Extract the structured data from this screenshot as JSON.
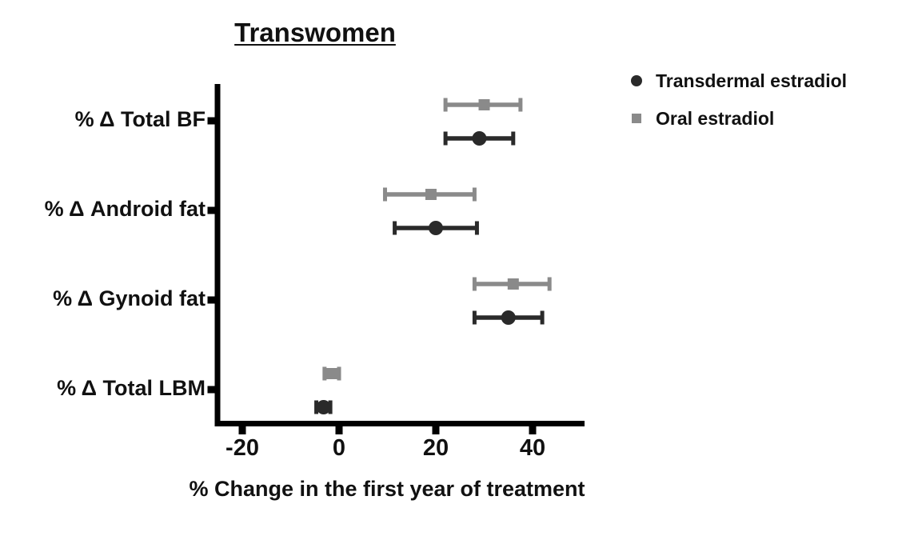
{
  "figure": {
    "background": "#ffffff",
    "axis_color": "#000000",
    "text_color": "#111111"
  },
  "chart_data": {
    "type": "scatter",
    "subtype": "forest-dot-plot-with-error-bars",
    "title": "Transwomen",
    "xlabel": "% Change in the first year of treatment",
    "ylabel": "",
    "categories": [
      "% Δ Total BF",
      "% Δ Android fat",
      "% Δ Gynoid fat",
      "% Δ Total LBM"
    ],
    "x_ticks": [
      -20,
      0,
      20,
      40
    ],
    "x_tick_labels": [
      "-20",
      "0",
      "20",
      "40"
    ],
    "xlim": [
      -25,
      50.5
    ],
    "grid": false,
    "legend_position": "top-right",
    "series": [
      {
        "name": "Transdermal estradiol",
        "marker": "circle",
        "color": "#2a2a2a",
        "values": [
          29,
          20,
          35,
          -3.2
        ],
        "ci_low": [
          22,
          11.5,
          28,
          -4.7
        ],
        "ci_high": [
          36,
          28.5,
          42,
          -1.8
        ]
      },
      {
        "name": "Oral estradiol",
        "marker": "square",
        "color": "#8a8a8a",
        "values": [
          30,
          19,
          36,
          -1.5
        ],
        "ci_low": [
          22,
          9.5,
          28,
          -3
        ],
        "ci_high": [
          37.5,
          28,
          43.5,
          0
        ]
      }
    ]
  }
}
